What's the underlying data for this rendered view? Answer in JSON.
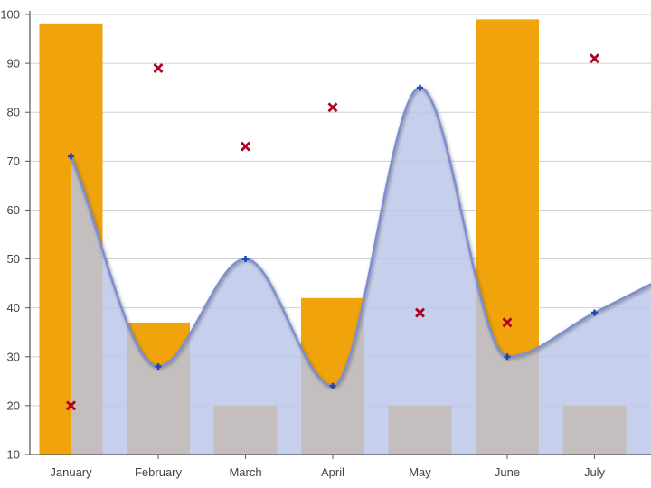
{
  "chart_data": {
    "type": "bar",
    "categories": [
      "January",
      "February",
      "March",
      "April",
      "May",
      "June",
      "July"
    ],
    "ylim": [
      10,
      100
    ],
    "yticks": [
      10,
      20,
      30,
      40,
      50,
      60,
      70,
      80,
      90,
      100
    ],
    "grid": true,
    "series": [
      {
        "type": "bar",
        "values": [
          98,
          37,
          20,
          42,
          20,
          99,
          20
        ],
        "color": "#F0A30A"
      },
      {
        "type": "area-spline",
        "values": [
          71,
          28,
          50,
          24,
          85,
          30,
          39
        ],
        "color": "#7C8FD6",
        "fill": "#BAC4E8"
      },
      {
        "type": "scatter",
        "values": [
          20,
          89,
          73,
          81,
          39,
          37,
          91
        ],
        "color": "#B00024"
      }
    ]
  }
}
